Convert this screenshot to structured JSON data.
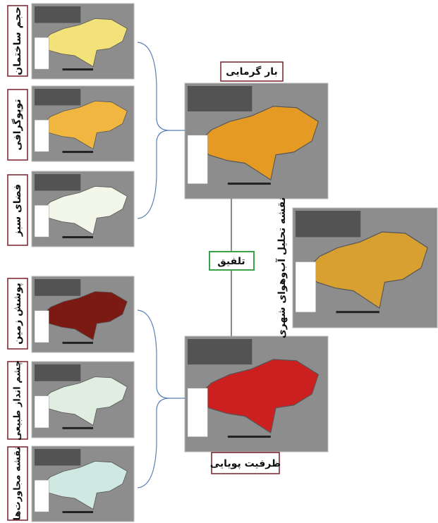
{
  "inputs": [
    {
      "label": "حجم ساختمان"
    },
    {
      "label": "توپوگرافی"
    },
    {
      "label": "فضای سبز"
    },
    {
      "label": "پوشش زمین"
    },
    {
      "label": "چشم انداز طبیعی"
    },
    {
      "label": "نقشه مجاورت‌ها"
    }
  ],
  "heat_load": {
    "label": "بار گرمایی"
  },
  "fusion": {
    "label": "تلفیق"
  },
  "dynamic_capacity": {
    "label": "ظرفیت پویایی"
  },
  "climate_map": {
    "label": "نقشه تحلیل آب‌وهوای شهری"
  }
}
